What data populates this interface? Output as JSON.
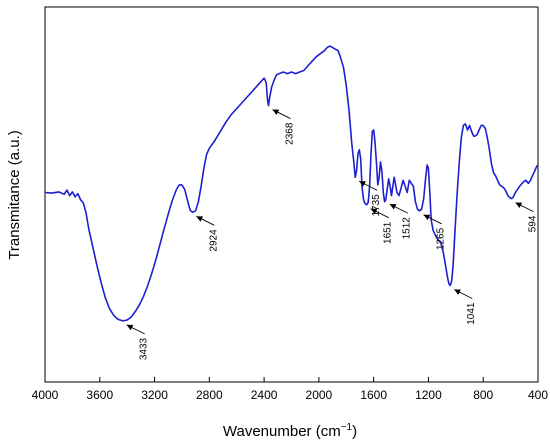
{
  "chart_data": {
    "type": "line",
    "xlabel": "Wavenumber (cm",
    "xlabel_sup": "−1",
    "xlabel_close": ")",
    "ylabel": "Transmitance (a.u.)",
    "xlim": [
      4000,
      400
    ],
    "x_reversed": true,
    "y_ticks_shown": false,
    "grid": false,
    "ylim": [
      0,
      100
    ],
    "x_ticks": [
      4000,
      3600,
      3200,
      2800,
      2400,
      2000,
      1600,
      1200,
      800,
      400
    ],
    "x_tick_labels": [
      "4000",
      "3600",
      "3200",
      "2800",
      "2400",
      "2000",
      "1600",
      "1200",
      "800",
      "400"
    ],
    "series": [
      {
        "color": "#1f1fd0",
        "points": [
          [
            4000,
            50.0
          ],
          [
            3950,
            49.8
          ],
          [
            3900,
            50.2
          ],
          [
            3860,
            49.4
          ],
          [
            3840,
            50.8
          ],
          [
            3820,
            49.0
          ],
          [
            3800,
            50.2
          ],
          [
            3780,
            48.6
          ],
          [
            3760,
            49.6
          ],
          [
            3740,
            47.6
          ],
          [
            3720,
            46.6
          ],
          [
            3700,
            43.2
          ],
          [
            3680,
            38.0
          ],
          [
            3650,
            32.0
          ],
          [
            3620,
            26.0
          ],
          [
            3590,
            20.5
          ],
          [
            3560,
            15.5
          ],
          [
            3530,
            12.0
          ],
          [
            3500,
            9.8
          ],
          [
            3470,
            8.5
          ],
          [
            3433,
            7.9
          ],
          [
            3400,
            8.2
          ],
          [
            3370,
            9.2
          ],
          [
            3340,
            11.0
          ],
          [
            3310,
            13.2
          ],
          [
            3280,
            16.0
          ],
          [
            3250,
            19.5
          ],
          [
            3220,
            23.5
          ],
          [
            3190,
            28.0
          ],
          [
            3160,
            33.0
          ],
          [
            3130,
            38.0
          ],
          [
            3100,
            43.0
          ],
          [
            3070,
            47.5
          ],
          [
            3040,
            51.0
          ],
          [
            3020,
            52.5
          ],
          [
            3000,
            52.5
          ],
          [
            2980,
            51.0
          ],
          [
            2960,
            47.5
          ],
          [
            2940,
            44.2
          ],
          [
            2924,
            43.5
          ],
          [
            2900,
            44.0
          ],
          [
            2880,
            47.0
          ],
          [
            2860,
            52.0
          ],
          [
            2840,
            58.0
          ],
          [
            2820,
            62.5
          ],
          [
            2800,
            64.5
          ],
          [
            2760,
            67.0
          ],
          [
            2720,
            70.0
          ],
          [
            2680,
            73.0
          ],
          [
            2640,
            75.5
          ],
          [
            2600,
            77.5
          ],
          [
            2560,
            79.5
          ],
          [
            2520,
            81.5
          ],
          [
            2480,
            83.5
          ],
          [
            2440,
            85.5
          ],
          [
            2400,
            87.5
          ],
          [
            2385,
            86.0
          ],
          [
            2375,
            80.5
          ],
          [
            2368,
            78.5
          ],
          [
            2360,
            81.0
          ],
          [
            2345,
            84.5
          ],
          [
            2330,
            86.5
          ],
          [
            2310,
            88.5
          ],
          [
            2290,
            89.0
          ],
          [
            2260,
            89.5
          ],
          [
            2230,
            89.0
          ],
          [
            2200,
            89.5
          ],
          [
            2170,
            89.0
          ],
          [
            2140,
            89.5
          ],
          [
            2110,
            90.0
          ],
          [
            2080,
            91.5
          ],
          [
            2050,
            93.0
          ],
          [
            2020,
            94.5
          ],
          [
            1990,
            95.5
          ],
          [
            1960,
            96.5
          ],
          [
            1940,
            97.5
          ],
          [
            1920,
            98.0
          ],
          [
            1900,
            97.5
          ],
          [
            1880,
            97.0
          ],
          [
            1860,
            96.5
          ],
          [
            1840,
            94.0
          ],
          [
            1820,
            91.0
          ],
          [
            1800,
            85.0
          ],
          [
            1780,
            77.0
          ],
          [
            1760,
            66.0
          ],
          [
            1745,
            60.0
          ],
          [
            1735,
            55.0
          ],
          [
            1725,
            57.0
          ],
          [
            1715,
            62.5
          ],
          [
            1705,
            64.0
          ],
          [
            1695,
            61.0
          ],
          [
            1685,
            52.0
          ],
          [
            1675,
            48.0
          ],
          [
            1665,
            46.5
          ],
          [
            1651,
            46.0
          ],
          [
            1640,
            46.8
          ],
          [
            1630,
            52.0
          ],
          [
            1620,
            62.0
          ],
          [
            1610,
            70.0
          ],
          [
            1600,
            70.5
          ],
          [
            1590,
            66.5
          ],
          [
            1580,
            60.0
          ],
          [
            1570,
            52.5
          ],
          [
            1560,
            55.0
          ],
          [
            1550,
            60.0
          ],
          [
            1540,
            57.0
          ],
          [
            1530,
            50.0
          ],
          [
            1520,
            47.0
          ],
          [
            1512,
            47.5
          ],
          [
            1500,
            51.5
          ],
          [
            1490,
            54.5
          ],
          [
            1480,
            52.0
          ],
          [
            1470,
            49.0
          ],
          [
            1460,
            52.0
          ],
          [
            1450,
            55.0
          ],
          [
            1440,
            52.5
          ],
          [
            1430,
            50.0
          ],
          [
            1415,
            49.0
          ],
          [
            1400,
            51.5
          ],
          [
            1385,
            54.0
          ],
          [
            1370,
            52.0
          ],
          [
            1355,
            50.0
          ],
          [
            1340,
            54.0
          ],
          [
            1325,
            53.0
          ],
          [
            1310,
            52.0
          ],
          [
            1295,
            47.0
          ],
          [
            1280,
            44.5
          ],
          [
            1265,
            44.0
          ],
          [
            1250,
            44.5
          ],
          [
            1235,
            48.0
          ],
          [
            1220,
            55.0
          ],
          [
            1210,
            59.0
          ],
          [
            1200,
            58.0
          ],
          [
            1190,
            50.0
          ],
          [
            1180,
            41.0
          ],
          [
            1165,
            37.5
          ],
          [
            1150,
            36.0
          ],
          [
            1130,
            34.5
          ],
          [
            1110,
            33.5
          ],
          [
            1090,
            30.0
          ],
          [
            1075,
            26.0
          ],
          [
            1060,
            22.0
          ],
          [
            1050,
            20.0
          ],
          [
            1041,
            19.5
          ],
          [
            1030,
            21.0
          ],
          [
            1020,
            26.0
          ],
          [
            1005,
            38.0
          ],
          [
            990,
            50.0
          ],
          [
            975,
            60.0
          ],
          [
            960,
            68.0
          ],
          [
            945,
            72.0
          ],
          [
            930,
            72.5
          ],
          [
            915,
            70.5
          ],
          [
            900,
            72.0
          ],
          [
            885,
            70.0
          ],
          [
            870,
            68.5
          ],
          [
            860,
            68.5
          ],
          [
            845,
            69.0
          ],
          [
            830,
            70.5
          ],
          [
            815,
            72.0
          ],
          [
            800,
            72.0
          ],
          [
            785,
            71.0
          ],
          [
            770,
            68.0
          ],
          [
            755,
            64.0
          ],
          [
            740,
            59.5
          ],
          [
            725,
            56.5
          ],
          [
            710,
            55.5
          ],
          [
            695,
            54.0
          ],
          [
            680,
            52.5
          ],
          [
            665,
            52.0
          ],
          [
            650,
            51.5
          ],
          [
            635,
            50.5
          ],
          [
            620,
            49.0
          ],
          [
            605,
            48.3
          ],
          [
            594,
            48.0
          ],
          [
            580,
            48.5
          ],
          [
            565,
            50.0
          ],
          [
            550,
            51.0
          ],
          [
            535,
            52.0
          ],
          [
            520,
            52.8
          ],
          [
            505,
            53.5
          ],
          [
            490,
            54.0
          ],
          [
            470,
            53.0
          ],
          [
            455,
            54.0
          ],
          [
            440,
            55.5
          ],
          [
            425,
            57.0
          ],
          [
            410,
            58.5
          ],
          [
            400,
            59.0
          ]
        ]
      }
    ],
    "annotations": [
      {
        "label": "3433",
        "x": 3433,
        "y": 7.9
      },
      {
        "label": "2924",
        "x": 2924,
        "y": 43.5
      },
      {
        "label": "2368",
        "x": 2368,
        "y": 78.5
      },
      {
        "label": "1735",
        "x": 1735,
        "y": 55.0
      },
      {
        "label": "1651",
        "x": 1651,
        "y": 46.0
      },
      {
        "label": "1512",
        "x": 1512,
        "y": 47.5
      },
      {
        "label": "1265",
        "x": 1265,
        "y": 44.0
      },
      {
        "label": "1041",
        "x": 1041,
        "y": 19.5
      },
      {
        "label": "594",
        "x": 594,
        "y": 48.0
      }
    ]
  }
}
